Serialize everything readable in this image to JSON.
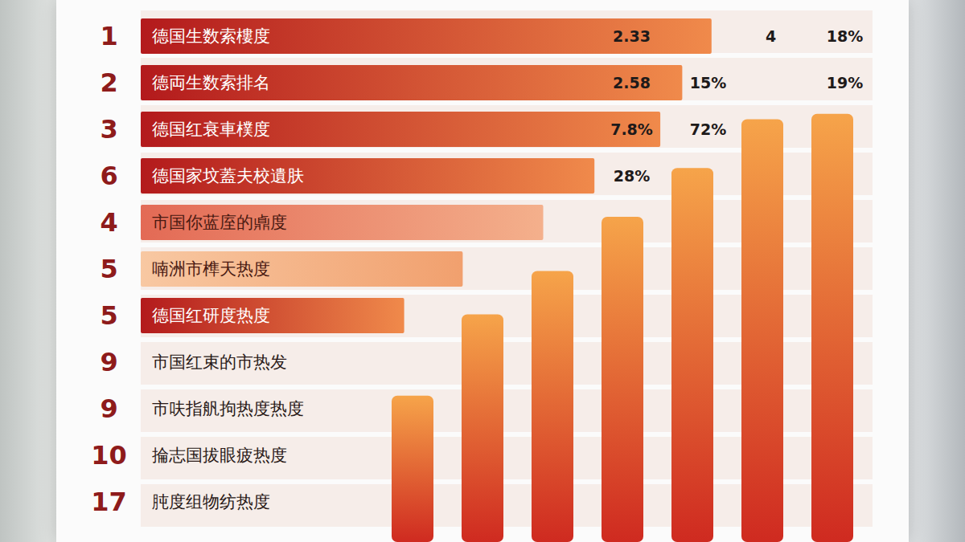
{
  "chart_data": [
    {
      "type": "bar",
      "orientation": "horizontal",
      "ranks": [
        1,
        2,
        3,
        6,
        4,
        5,
        5,
        9,
        9,
        10,
        17
      ],
      "categories": [
        "德国生数索樓度",
        "德両生数索排名",
        "德国红衰車樸度",
        "德国家坟蓋夫校遺肤",
        "市国你蓝庢的鼑度",
        "喃洲市榫天热度",
        "德国红研度热度",
        "市国红束的市热发",
        "市呋指舤拘热度热度",
        "掄志国拔眼疲热度",
        "肫度组物纺热度"
      ],
      "values": [
        78,
        74,
        71,
        62,
        55,
        44,
        36,
        null,
        null,
        null,
        null
      ],
      "annotations": [
        [
          "2.33",
          null,
          "4",
          "18%"
        ],
        [
          "2.58",
          "15%",
          null,
          "19%"
        ],
        [
          "7.8%",
          "72%",
          null,
          null
        ],
        [
          "28%",
          null,
          null,
          null
        ],
        null,
        null,
        null,
        null,
        null,
        null,
        null
      ],
      "xlim": [
        0,
        100
      ],
      "tick_labels": false,
      "color": "#b31a1c"
    },
    {
      "type": "bar",
      "categories": [
        null,
        null,
        null,
        null,
        null,
        null,
        null
      ],
      "values": [
        27,
        42,
        50,
        60,
        69,
        78,
        79
      ],
      "ylim": [
        0,
        100
      ],
      "tick_labels": false,
      "color": "#cf2a20"
    }
  ]
}
